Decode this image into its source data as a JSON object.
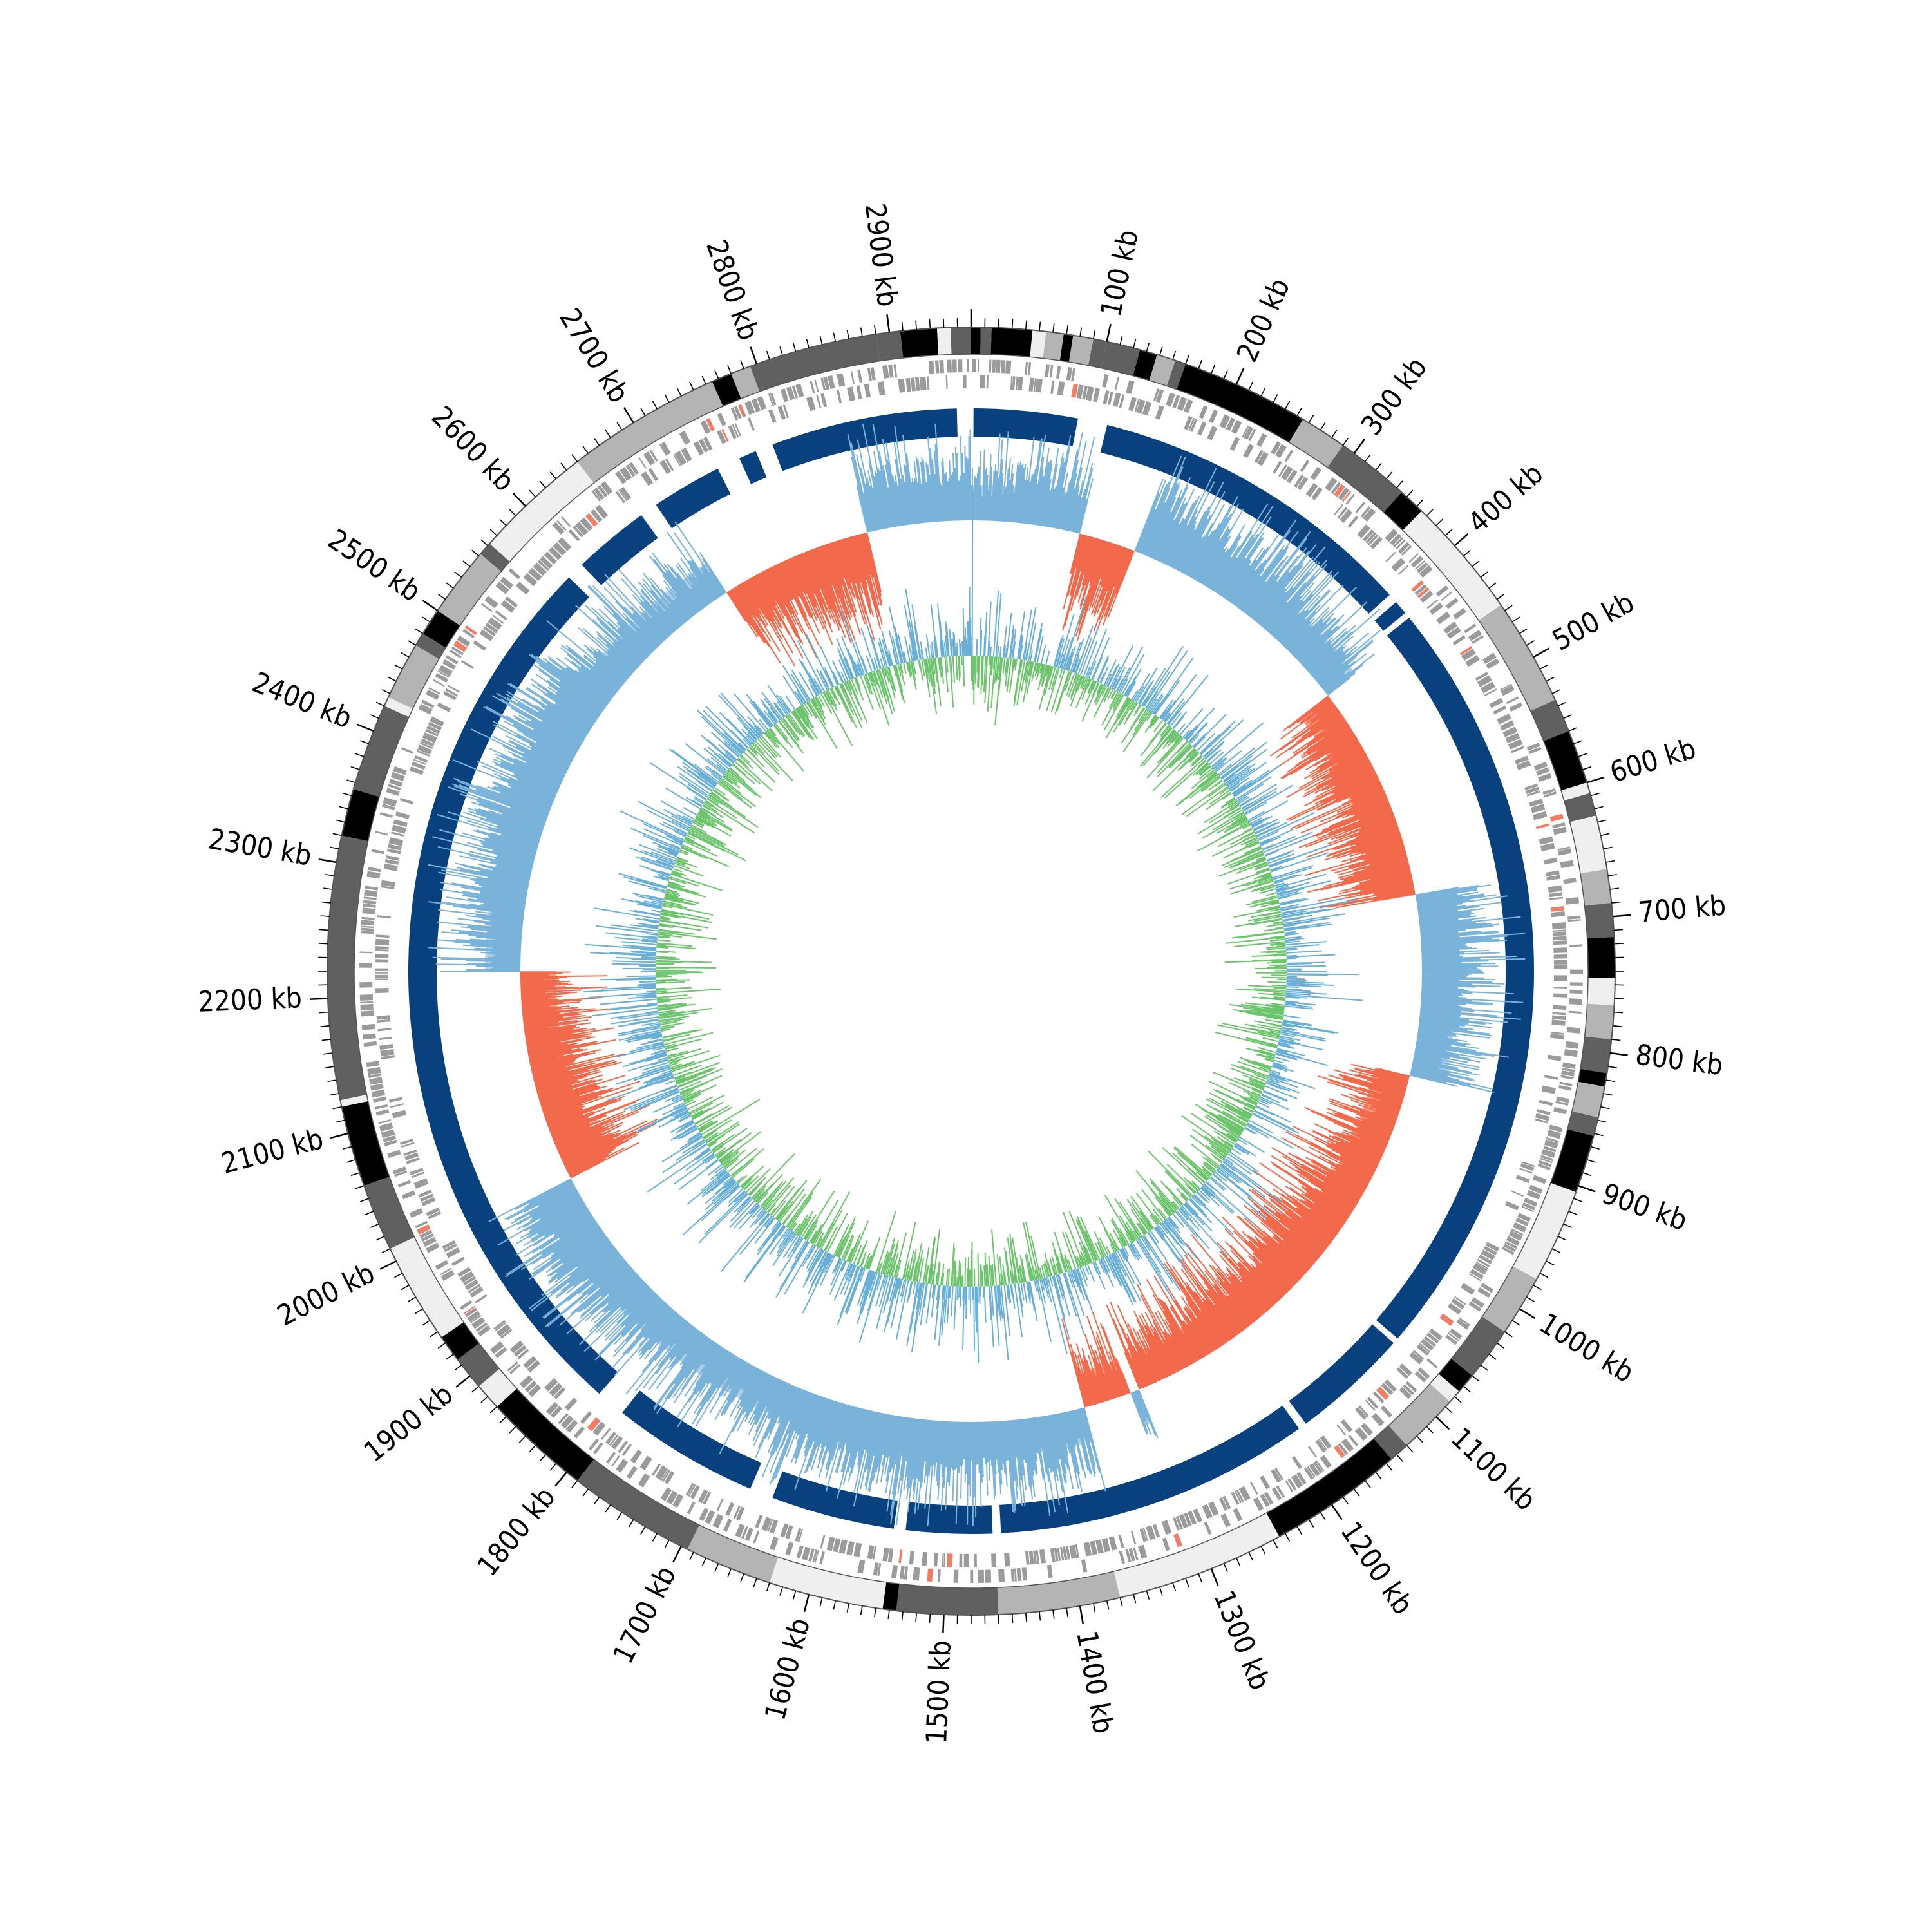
{
  "chart_data": {
    "type": "circos-genome-map",
    "genome_length_kb": 2960,
    "tick_labels": [
      {
        "kb": 100,
        "label": "100 kb"
      },
      {
        "kb": 200,
        "label": "200 kb"
      },
      {
        "kb": 300,
        "label": "300 kb"
      },
      {
        "kb": 400,
        "label": "400 kb"
      },
      {
        "kb": 500,
        "label": "500 kb"
      },
      {
        "kb": 600,
        "label": "600 kb"
      },
      {
        "kb": 700,
        "label": "700 kb"
      },
      {
        "kb": 800,
        "label": "800 kb"
      },
      {
        "kb": 900,
        "label": "900 kb"
      },
      {
        "kb": 1000,
        "label": "1000 kb"
      },
      {
        "kb": 1100,
        "label": "1100 kb"
      },
      {
        "kb": 1200,
        "label": "1200 kb"
      },
      {
        "kb": 1300,
        "label": "1300 kb"
      },
      {
        "kb": 1400,
        "label": "1400 kb"
      },
      {
        "kb": 1500,
        "label": "1500 kb"
      },
      {
        "kb": 1600,
        "label": "1600 kb"
      },
      {
        "kb": 1700,
        "label": "1700 kb"
      },
      {
        "kb": 1800,
        "label": "1800 kb"
      },
      {
        "kb": 1900,
        "label": "1900 kb"
      },
      {
        "kb": 2000,
        "label": "2000 kb"
      },
      {
        "kb": 2100,
        "label": "2100 kb"
      },
      {
        "kb": 2200,
        "label": "2200 kb"
      },
      {
        "kb": 2300,
        "label": "2300 kb"
      },
      {
        "kb": 2400,
        "label": "2400 kb"
      },
      {
        "kb": 2500,
        "label": "2500 kb"
      },
      {
        "kb": 2600,
        "label": "2600 kb"
      },
      {
        "kb": 2700,
        "label": "2700 kb"
      },
      {
        "kb": 2800,
        "label": "2800 kb"
      },
      {
        "kb": 2900,
        "label": "2900 kb"
      }
    ],
    "outer_blocks": [
      {
        "start": 0,
        "end": 7,
        "shade": "black"
      },
      {
        "start": 7,
        "end": 15,
        "shade": "dark"
      },
      {
        "start": 15,
        "end": 45,
        "shade": "black"
      },
      {
        "start": 45,
        "end": 55,
        "shade": "light"
      },
      {
        "start": 55,
        "end": 68,
        "shade": "mid"
      },
      {
        "start": 68,
        "end": 75,
        "shade": "black"
      },
      {
        "start": 75,
        "end": 90,
        "shade": "mid"
      },
      {
        "start": 90,
        "end": 100,
        "shade": "dark"
      },
      {
        "start": 100,
        "end": 125,
        "shade": "dark"
      },
      {
        "start": 125,
        "end": 138,
        "shade": "black"
      },
      {
        "start": 138,
        "end": 152,
        "shade": "mid"
      },
      {
        "start": 152,
        "end": 160,
        "shade": "dark"
      },
      {
        "start": 160,
        "end": 255,
        "shade": "black"
      },
      {
        "start": 255,
        "end": 290,
        "shade": "mid"
      },
      {
        "start": 290,
        "end": 345,
        "shade": "dark"
      },
      {
        "start": 345,
        "end": 365,
        "shade": "black"
      },
      {
        "start": 365,
        "end": 455,
        "shade": "light"
      },
      {
        "start": 455,
        "end": 535,
        "shade": "mid"
      },
      {
        "start": 535,
        "end": 560,
        "shade": "dark"
      },
      {
        "start": 560,
        "end": 600,
        "shade": "black"
      },
      {
        "start": 600,
        "end": 608,
        "shade": "light"
      },
      {
        "start": 608,
        "end": 625,
        "shade": "dark"
      },
      {
        "start": 625,
        "end": 665,
        "shade": "light"
      },
      {
        "start": 665,
        "end": 690,
        "shade": "mid"
      },
      {
        "start": 690,
        "end": 715,
        "shade": "dark"
      },
      {
        "start": 715,
        "end": 745,
        "shade": "black"
      },
      {
        "start": 745,
        "end": 765,
        "shade": "light"
      },
      {
        "start": 765,
        "end": 790,
        "shade": "mid"
      },
      {
        "start": 790,
        "end": 815,
        "shade": "dark"
      },
      {
        "start": 815,
        "end": 825,
        "shade": "black"
      },
      {
        "start": 825,
        "end": 848,
        "shade": "mid"
      },
      {
        "start": 848,
        "end": 862,
        "shade": "dark"
      },
      {
        "start": 862,
        "end": 905,
        "shade": "black"
      },
      {
        "start": 905,
        "end": 975,
        "shade": "light"
      },
      {
        "start": 975,
        "end": 1020,
        "shade": "mid"
      },
      {
        "start": 1020,
        "end": 1060,
        "shade": "dark"
      },
      {
        "start": 1060,
        "end": 1075,
        "shade": "black"
      },
      {
        "start": 1075,
        "end": 1085,
        "shade": "light"
      },
      {
        "start": 1085,
        "end": 1130,
        "shade": "mid"
      },
      {
        "start": 1130,
        "end": 1145,
        "shade": "dark"
      },
      {
        "start": 1145,
        "end": 1245,
        "shade": "black"
      },
      {
        "start": 1245,
        "end": 1370,
        "shade": "light"
      },
      {
        "start": 1370,
        "end": 1460,
        "shade": "mid"
      },
      {
        "start": 1460,
        "end": 1535,
        "shade": "dark"
      },
      {
        "start": 1535,
        "end": 1545,
        "shade": "black"
      },
      {
        "start": 1545,
        "end": 1630,
        "shade": "light"
      },
      {
        "start": 1630,
        "end": 1695,
        "shade": "mid"
      },
      {
        "start": 1695,
        "end": 1790,
        "shade": "dark"
      },
      {
        "start": 1790,
        "end": 1870,
        "shade": "black"
      },
      {
        "start": 1870,
        "end": 1890,
        "shade": "light"
      },
      {
        "start": 1890,
        "end": 1915,
        "shade": "dark"
      },
      {
        "start": 1915,
        "end": 1935,
        "shade": "black"
      },
      {
        "start": 1935,
        "end": 2010,
        "shade": "light"
      },
      {
        "start": 2010,
        "end": 2060,
        "shade": "dark"
      },
      {
        "start": 2060,
        "end": 2120,
        "shade": "black"
      },
      {
        "start": 2120,
        "end": 2125,
        "shade": "light"
      },
      {
        "start": 2125,
        "end": 2320,
        "shade": "dark"
      },
      {
        "start": 2320,
        "end": 2355,
        "shade": "black"
      },
      {
        "start": 2355,
        "end": 2420,
        "shade": "dark"
      },
      {
        "start": 2420,
        "end": 2427,
        "shade": "light"
      },
      {
        "start": 2427,
        "end": 2470,
        "shade": "mid"
      },
      {
        "start": 2470,
        "end": 2480,
        "shade": "dark"
      },
      {
        "start": 2480,
        "end": 2500,
        "shade": "black"
      },
      {
        "start": 2500,
        "end": 2552,
        "shade": "mid"
      },
      {
        "start": 2552,
        "end": 2562,
        "shade": "dark"
      },
      {
        "start": 2562,
        "end": 2650,
        "shade": "light"
      },
      {
        "start": 2650,
        "end": 2765,
        "shade": "mid"
      },
      {
        "start": 2765,
        "end": 2780,
        "shade": "black"
      },
      {
        "start": 2780,
        "end": 2795,
        "shade": "mid"
      },
      {
        "start": 2795,
        "end": 2890,
        "shade": "dark"
      },
      {
        "start": 2890,
        "end": 2908,
        "shade": "dark"
      },
      {
        "start": 2908,
        "end": 2935,
        "shade": "black"
      },
      {
        "start": 2935,
        "end": 2945,
        "shade": "light"
      },
      {
        "start": 2945,
        "end": 2960,
        "shade": "dark"
      }
    ],
    "blue_blocks": [
      {
        "start": 2,
        "end": 90
      },
      {
        "start": 115,
        "end": 395
      },
      {
        "start": 403,
        "end": 415
      },
      {
        "start": 420,
        "end": 1075
      },
      {
        "start": 1080,
        "end": 1180
      },
      {
        "start": 1187,
        "end": 1455
      },
      {
        "start": 1462,
        "end": 1535
      },
      {
        "start": 1545,
        "end": 1650
      },
      {
        "start": 1670,
        "end": 1795
      },
      {
        "start": 1820,
        "end": 2585
      },
      {
        "start": 2600,
        "end": 2665
      },
      {
        "start": 2680,
        "end": 2740
      },
      {
        "start": 2760,
        "end": 2775
      },
      {
        "start": 2790,
        "end": 2948
      }
    ],
    "skew_negative_regions": [
      {
        "start": 115,
        "end": 175
      },
      {
        "start": 430,
        "end": 660
      },
      {
        "start": 850,
        "end": 1300
      },
      {
        "start": 1310,
        "end": 1360
      },
      {
        "start": 1995,
        "end": 2220
      },
      {
        "start": 2690,
        "end": 2850
      }
    ],
    "colors": {
      "black": "#000000",
      "dark": "#606060",
      "mid": "#b4b4b4",
      "light": "#efefef",
      "outline": "#555555",
      "genes": "#9b9b9b",
      "genes_accent": "#f07d65",
      "blocks": "#08417e",
      "skew_positive": "#79b3da",
      "skew_positive_fill": "#9fc7e3",
      "skew_negative": "#f26a4b",
      "skew_negative_fill": "#fb8b70",
      "gc_positive": "#6ab0d6",
      "gc_negative": "#6cc46c"
    }
  }
}
